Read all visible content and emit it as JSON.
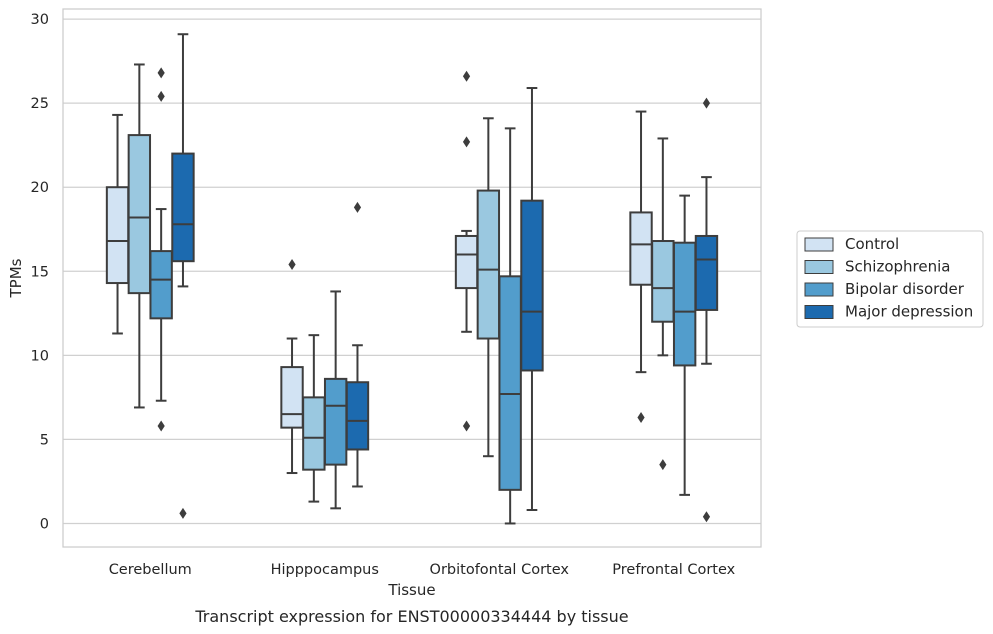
{
  "chart_data": {
    "type": "box",
    "caption": "Transcript expression for ENST00000334444 by tissue",
    "xlabel": "Tissue",
    "ylabel": "TPMs",
    "ylim": [
      -1.4,
      30.6
    ],
    "yticks": [
      0,
      5,
      10,
      15,
      20,
      25,
      30
    ],
    "grid": "horizontal",
    "legend_position": "right",
    "categories": [
      "Cerebellum",
      "Hipppocampus",
      "Orbitofontal Cortex",
      "Prefrontal Cortex"
    ],
    "series": [
      {
        "name": "Control",
        "color": "#d2e3f3",
        "boxes": [
          {
            "whisker_low": 11.3,
            "q1": 14.3,
            "median": 16.8,
            "q3": 20.0,
            "whisker_high": 24.3,
            "outliers": []
          },
          {
            "whisker_low": 3.0,
            "q1": 5.7,
            "median": 6.5,
            "q3": 9.3,
            "whisker_high": 11.0,
            "outliers": [
              15.4
            ]
          },
          {
            "whisker_low": 11.4,
            "q1": 14.0,
            "median": 16.0,
            "q3": 17.1,
            "whisker_high": 17.4,
            "outliers": [
              26.6,
              22.7,
              5.8
            ]
          },
          {
            "whisker_low": 9.0,
            "q1": 14.2,
            "median": 16.6,
            "q3": 18.5,
            "whisker_high": 24.5,
            "outliers": [
              6.3
            ]
          }
        ]
      },
      {
        "name": "Schizophrenia",
        "color": "#9ac8e0",
        "boxes": [
          {
            "whisker_low": 6.9,
            "q1": 13.7,
            "median": 18.2,
            "q3": 23.1,
            "whisker_high": 27.3,
            "outliers": []
          },
          {
            "whisker_low": 1.3,
            "q1": 3.2,
            "median": 5.1,
            "q3": 7.5,
            "whisker_high": 11.2,
            "outliers": []
          },
          {
            "whisker_low": 4.0,
            "q1": 11.0,
            "median": 15.1,
            "q3": 19.8,
            "whisker_high": 24.1,
            "outliers": []
          },
          {
            "whisker_low": 10.0,
            "q1": 12.0,
            "median": 14.0,
            "q3": 16.8,
            "whisker_high": 22.9,
            "outliers": [
              3.5
            ]
          }
        ]
      },
      {
        "name": "Bipolar disorder",
        "color": "#529dcc",
        "boxes": [
          {
            "whisker_low": 7.3,
            "q1": 12.2,
            "median": 14.5,
            "q3": 16.2,
            "whisker_high": 18.7,
            "outliers": [
              26.8,
              25.4,
              5.8
            ]
          },
          {
            "whisker_low": 0.9,
            "q1": 3.5,
            "median": 7.0,
            "q3": 8.6,
            "whisker_high": 13.8,
            "outliers": []
          },
          {
            "whisker_low": 0.0,
            "q1": 2.0,
            "median": 7.7,
            "q3": 14.7,
            "whisker_high": 23.5,
            "outliers": []
          },
          {
            "whisker_low": 1.7,
            "q1": 9.4,
            "median": 12.6,
            "q3": 16.7,
            "whisker_high": 19.5,
            "outliers": []
          }
        ]
      },
      {
        "name": "Major depression",
        "color": "#1c6aaf",
        "boxes": [
          {
            "whisker_low": 14.1,
            "q1": 15.6,
            "median": 17.8,
            "q3": 22.0,
            "whisker_high": 29.1,
            "outliers": [
              0.6
            ]
          },
          {
            "whisker_low": 2.2,
            "q1": 4.4,
            "median": 6.1,
            "q3": 8.4,
            "whisker_high": 10.6,
            "outliers": [
              18.8
            ]
          },
          {
            "whisker_low": 0.8,
            "q1": 9.1,
            "median": 12.6,
            "q3": 19.2,
            "whisker_high": 25.9,
            "outliers": []
          },
          {
            "whisker_low": 9.5,
            "q1": 12.7,
            "median": 15.7,
            "q3": 17.1,
            "whisker_high": 20.6,
            "outliers": [
              25.0,
              0.4
            ]
          }
        ]
      }
    ]
  }
}
